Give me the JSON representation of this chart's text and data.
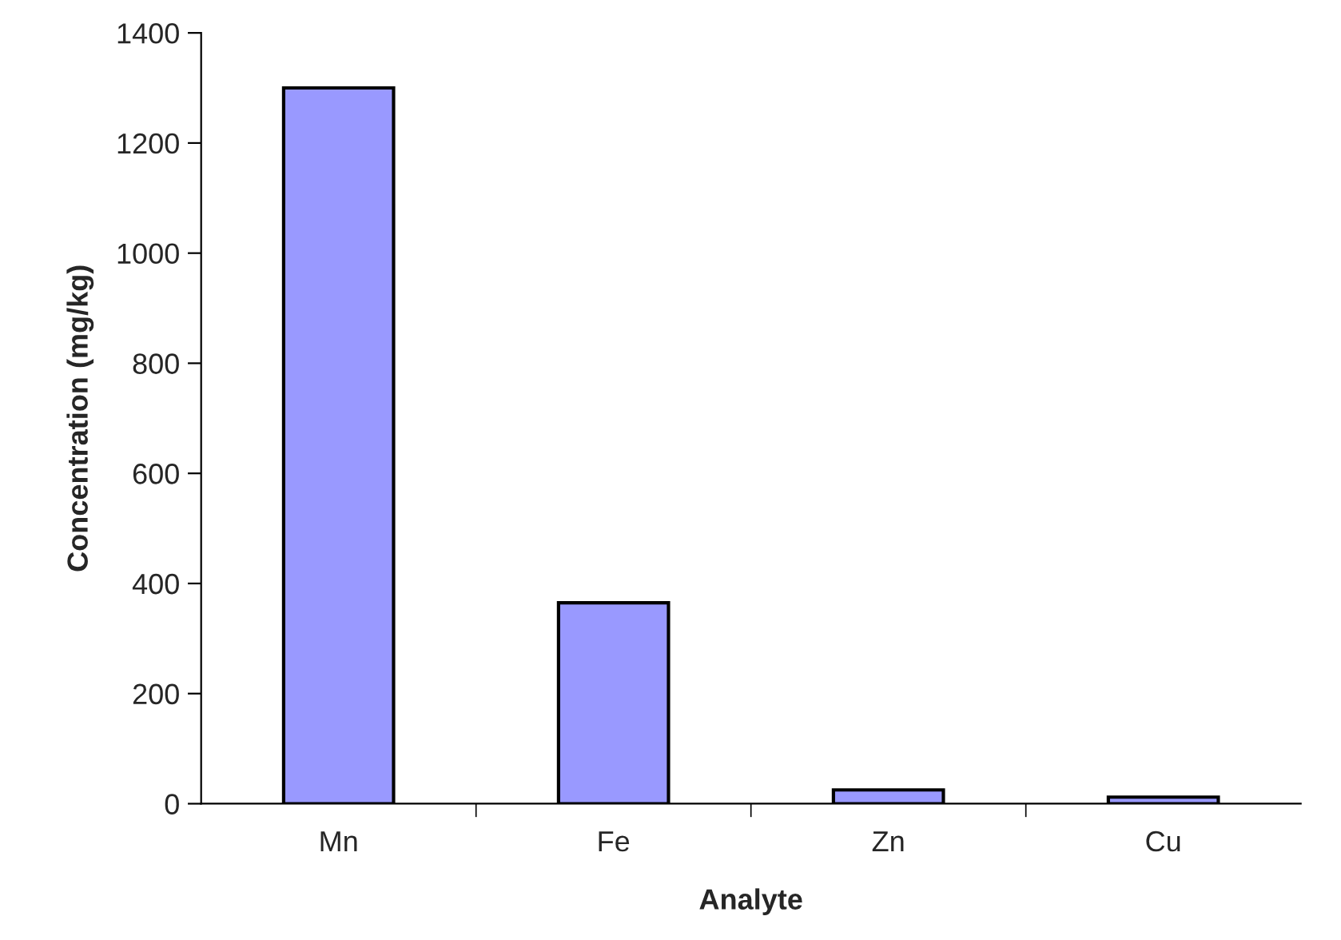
{
  "chart_data": {
    "type": "bar",
    "xlabel": "Analyte",
    "ylabel": "Concentration (mg/kg)",
    "categories": [
      "Mn",
      "Fe",
      "Zn",
      "Cu"
    ],
    "values": [
      1300,
      365,
      25,
      12
    ],
    "color": "#9999ff",
    "ylim": [
      0,
      1400
    ],
    "yticks": [
      0,
      200,
      400,
      600,
      800,
      1000,
      1200,
      1400
    ],
    "grid": false,
    "legend": false
  }
}
